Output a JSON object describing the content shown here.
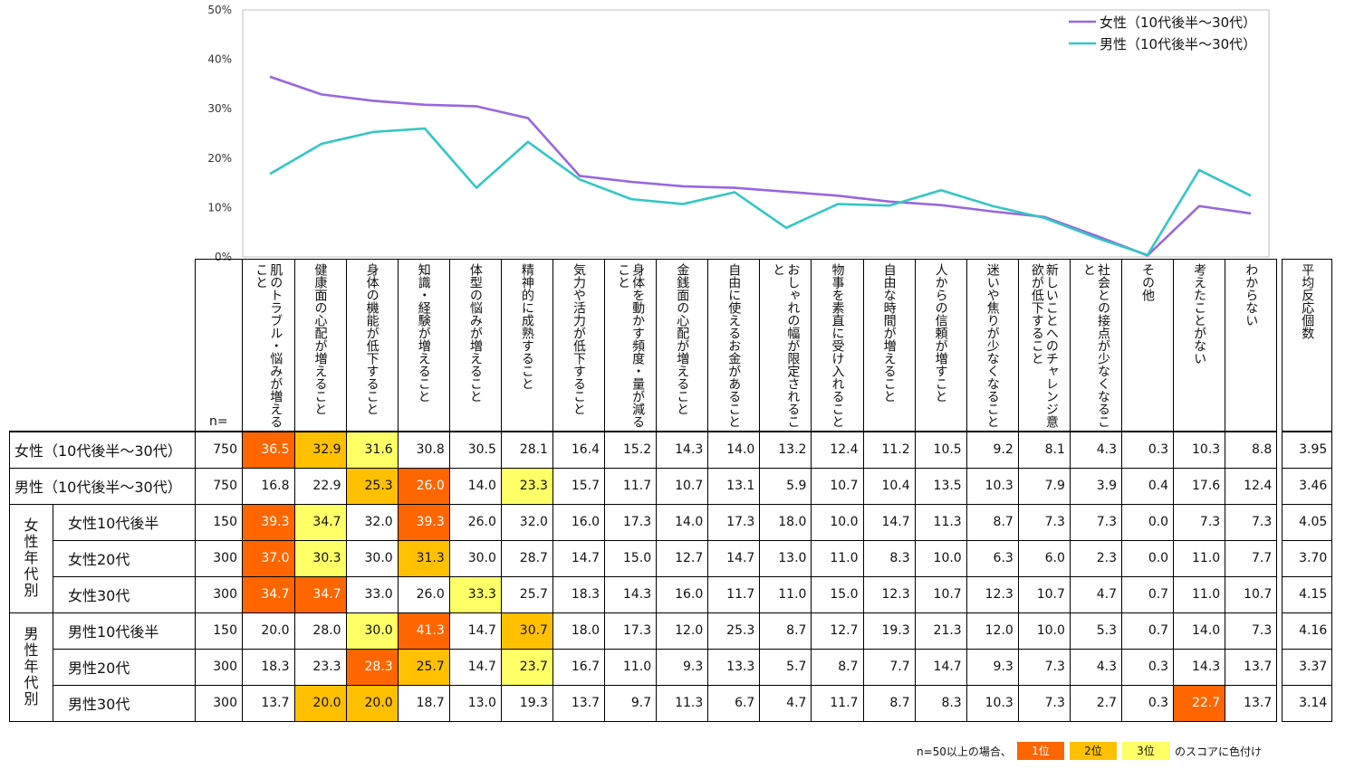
{
  "chart_data": {
    "type": "line",
    "y_ticks": [
      "0%",
      "10%",
      "20%",
      "30%",
      "40%",
      "50%"
    ],
    "ylim": [
      0,
      50
    ],
    "categories": [
      "肌のトラブル・悩みが増えること",
      "健康面の心配が増えること",
      "身体の機能が低下すること",
      "知識・経験が増えること",
      "体型の悩みが増えること",
      "精神的に成熟すること",
      "気力や活力が低下すること",
      "身体を動かす頻度・量が減ること",
      "金銭面の心配が増えること",
      "自由に使えるお金があること",
      "おしゃれの幅が限定されること",
      "物事を素直に受け入れること",
      "自由な時間が増えること",
      "人からの信頼が増すこと",
      "迷いや焦りが少なくなること",
      "新しいことへのチャレンジ意欲が低下すること",
      "社会との接点が少なくなること",
      "その他",
      "考えたことがない",
      "わからない"
    ],
    "series": [
      {
        "name": "女性（10代後半～30代）",
        "color": "#9966e0",
        "values": [
          36.5,
          32.9,
          31.6,
          30.8,
          30.5,
          28.1,
          16.4,
          15.2,
          14.3,
          14.0,
          13.2,
          12.4,
          11.2,
          10.5,
          9.2,
          8.1,
          4.3,
          0.3,
          10.3,
          8.8
        ]
      },
      {
        "name": "男性（10代後半～30代）",
        "color": "#33c6c6",
        "values": [
          16.8,
          22.9,
          25.3,
          26.0,
          14.0,
          23.3,
          15.7,
          11.7,
          10.7,
          13.1,
          5.9,
          10.7,
          10.4,
          13.5,
          10.3,
          7.9,
          3.9,
          0.4,
          17.6,
          12.4
        ]
      }
    ]
  },
  "table": {
    "n_label": "n=",
    "avg_header": "平均反応個数",
    "headers": [
      "肌のトラブル・悩みが増えること",
      "健康面の心配が増えること",
      "身体の機能が低下すること",
      "知識・経験が増えること",
      "体型の悩みが増えること",
      "精神的に成熟すること",
      "気力や活力が低下すること",
      "身体を動かす頻度・量が減ること",
      "金銭面の心配が増えること",
      "自由に使えるお金があること",
      "おしゃれの幅が限定されること",
      "物事を素直に受け入れること",
      "自由な時間が増えること",
      "人からの信頼が増すこと",
      "迷いや焦りが少なくなること",
      "新しいことへのチャレンジ意欲が低下すること",
      "社会との接点が少なくなること",
      "その他",
      "考えたことがない",
      "わからない"
    ],
    "group_female": "女性年代別",
    "group_male": "男性年代別",
    "rows": [
      {
        "label": "女性（10代後半～30代）",
        "n": "750",
        "avg": "3.95",
        "values": [
          "36.5",
          "32.9",
          "31.6",
          "30.8",
          "30.5",
          "28.1",
          "16.4",
          "15.2",
          "14.3",
          "14.0",
          "13.2",
          "12.4",
          "11.2",
          "10.5",
          "9.2",
          "8.1",
          "4.3",
          "0.3",
          "10.3",
          "8.8"
        ],
        "ranks": [
          1,
          2,
          3,
          0,
          0,
          0,
          0,
          0,
          0,
          0,
          0,
          0,
          0,
          0,
          0,
          0,
          0,
          0,
          0,
          0
        ]
      },
      {
        "label": "男性（10代後半～30代）",
        "n": "750",
        "avg": "3.46",
        "values": [
          "16.8",
          "22.9",
          "25.3",
          "26.0",
          "14.0",
          "23.3",
          "15.7",
          "11.7",
          "10.7",
          "13.1",
          "5.9",
          "10.7",
          "10.4",
          "13.5",
          "10.3",
          "7.9",
          "3.9",
          "0.4",
          "17.6",
          "12.4"
        ],
        "ranks": [
          0,
          0,
          2,
          1,
          0,
          3,
          0,
          0,
          0,
          0,
          0,
          0,
          0,
          0,
          0,
          0,
          0,
          0,
          0,
          0
        ]
      },
      {
        "label": "女性10代後半",
        "n": "150",
        "avg": "4.05",
        "values": [
          "39.3",
          "34.7",
          "32.0",
          "39.3",
          "26.0",
          "32.0",
          "16.0",
          "17.3",
          "14.0",
          "17.3",
          "18.0",
          "10.0",
          "14.7",
          "11.3",
          "8.7",
          "7.3",
          "7.3",
          "0.0",
          "7.3",
          "7.3"
        ],
        "ranks": [
          1,
          3,
          0,
          1,
          0,
          0,
          0,
          0,
          0,
          0,
          0,
          0,
          0,
          0,
          0,
          0,
          0,
          0,
          0,
          0
        ]
      },
      {
        "label": "女性20代",
        "n": "300",
        "avg": "3.70",
        "values": [
          "37.0",
          "30.3",
          "30.0",
          "31.3",
          "30.0",
          "28.7",
          "14.7",
          "15.0",
          "12.7",
          "14.7",
          "13.0",
          "11.0",
          "8.3",
          "10.0",
          "6.3",
          "6.0",
          "2.3",
          "0.0",
          "11.0",
          "7.7"
        ],
        "ranks": [
          1,
          3,
          0,
          2,
          0,
          0,
          0,
          0,
          0,
          0,
          0,
          0,
          0,
          0,
          0,
          0,
          0,
          0,
          0,
          0
        ]
      },
      {
        "label": "女性30代",
        "n": "300",
        "avg": "4.15",
        "values": [
          "34.7",
          "34.7",
          "33.0",
          "26.0",
          "33.3",
          "25.7",
          "18.3",
          "14.3",
          "16.0",
          "11.7",
          "11.0",
          "15.0",
          "12.3",
          "10.7",
          "12.3",
          "10.7",
          "4.7",
          "0.7",
          "11.0",
          "10.7"
        ],
        "ranks": [
          1,
          1,
          0,
          0,
          3,
          0,
          0,
          0,
          0,
          0,
          0,
          0,
          0,
          0,
          0,
          0,
          0,
          0,
          0,
          0
        ]
      },
      {
        "label": "男性10代後半",
        "n": "150",
        "avg": "4.16",
        "values": [
          "20.0",
          "28.0",
          "30.0",
          "41.3",
          "14.7",
          "30.7",
          "18.0",
          "17.3",
          "12.0",
          "25.3",
          "8.7",
          "12.7",
          "19.3",
          "21.3",
          "12.0",
          "10.0",
          "5.3",
          "0.7",
          "14.0",
          "7.3"
        ],
        "ranks": [
          0,
          0,
          3,
          1,
          0,
          2,
          0,
          0,
          0,
          0,
          0,
          0,
          0,
          0,
          0,
          0,
          0,
          0,
          0,
          0
        ]
      },
      {
        "label": "男性20代",
        "n": "300",
        "avg": "3.37",
        "values": [
          "18.3",
          "23.3",
          "28.3",
          "25.7",
          "14.7",
          "23.7",
          "16.7",
          "11.0",
          "9.3",
          "13.3",
          "5.7",
          "8.7",
          "7.7",
          "14.7",
          "9.3",
          "7.3",
          "4.3",
          "0.3",
          "14.3",
          "13.7"
        ],
        "ranks": [
          0,
          0,
          1,
          2,
          0,
          3,
          0,
          0,
          0,
          0,
          0,
          0,
          0,
          0,
          0,
          0,
          0,
          0,
          0,
          0
        ]
      },
      {
        "label": "男性30代",
        "n": "300",
        "avg": "3.14",
        "values": [
          "13.7",
          "20.0",
          "20.0",
          "18.7",
          "13.0",
          "19.3",
          "13.7",
          "9.7",
          "11.3",
          "6.7",
          "4.7",
          "11.7",
          "8.7",
          "8.3",
          "10.3",
          "7.3",
          "2.7",
          "0.3",
          "22.7",
          "13.7"
        ],
        "ranks": [
          0,
          2,
          2,
          0,
          0,
          0,
          0,
          0,
          0,
          0,
          0,
          0,
          0,
          0,
          0,
          0,
          0,
          0,
          1,
          0
        ]
      }
    ]
  },
  "footnote": {
    "prefix": "n=50以上の場合、",
    "rank1": "1位",
    "rank2": "2位",
    "rank3": "3位",
    "suffix": "のスコアに色付け"
  }
}
